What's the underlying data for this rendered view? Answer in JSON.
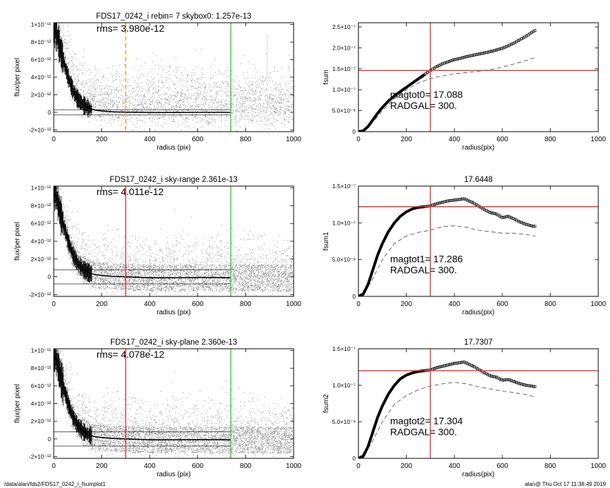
{
  "footer": {
    "path": "/data/alan/fds2/FDS17_0242_i_fsumplot1",
    "user_time": "alan@  Thu Oct 17 11:38:49 2019"
  },
  "colors": {
    "points": "#888888",
    "profile": "#000000",
    "radgal_line": "#e8332e",
    "outer_line": "#33cc33",
    "skybox_line": "#f0a030",
    "axes": "#000000"
  },
  "chart_data": [
    {
      "type": "scatter",
      "title": "FDS17_0242_i rebin= 7    skybox0:  1.257e-13",
      "annotation": "rms= 3.980e-12",
      "xlabel": "radius (pix)",
      "ylabel": "flux/per pixel",
      "xlim": [
        0,
        1000
      ],
      "ylim": [
        -2.2e-12,
        1.02e-11
      ],
      "x_ticks": [
        "0",
        "200",
        "400",
        "600",
        "800",
        "1000"
      ],
      "y_ticks": [
        {
          "value": -2e-12,
          "label": "-2×10⁻¹²"
        },
        {
          "value": 0,
          "label": "0"
        },
        {
          "value": 2e-12,
          "label": "2×10⁻¹²"
        },
        {
          "value": 4e-12,
          "label": "4×10⁻¹²"
        },
        {
          "value": 6e-12,
          "label": "6×10⁻¹²"
        },
        {
          "value": 8e-12,
          "label": "8×10⁻¹²"
        },
        {
          "value": 1e-11,
          "label": "1×10⁻¹¹"
        }
      ],
      "vlines": [
        {
          "x": 300,
          "color": "#f0a030",
          "style": "dashed"
        },
        {
          "x": 738,
          "color": "#33cc33",
          "style": "solid"
        }
      ],
      "profile": [
        [
          5,
          9.4e-12
        ],
        [
          15,
          8.6e-12
        ],
        [
          25,
          7.4e-12
        ],
        [
          40,
          5.9e-12
        ],
        [
          60,
          4e-12
        ],
        [
          80,
          2.5e-12
        ],
        [
          100,
          1.5e-12
        ],
        [
          125,
          8e-13
        ],
        [
          150,
          4e-13
        ],
        [
          175,
          2.5e-13
        ],
        [
          200,
          1.5e-13
        ],
        [
          250,
          5e-14
        ],
        [
          300,
          2e-14
        ],
        [
          400,
          0
        ],
        [
          500,
          -2e-14
        ],
        [
          600,
          0
        ],
        [
          738,
          0
        ]
      ],
      "sky_band": [
        -3e-13,
        3e-13
      ],
      "scatter_style": "sparse"
    },
    {
      "type": "line",
      "title": "",
      "xlabel": "radius(pix)",
      "ylabel": "fsum",
      "xlim": [
        0,
        1000
      ],
      "ylim": [
        0,
        2.6e-07
      ],
      "x_ticks": [
        "0",
        "200",
        "400",
        "600",
        "800",
        "1000"
      ],
      "y_ticks": [
        {
          "value": 0,
          "label": "0"
        },
        {
          "value": 5e-08,
          "label": "5.0×10⁻⁸"
        },
        {
          "value": 1e-07,
          "label": "1.0×10⁻⁷"
        },
        {
          "value": 1.5e-07,
          "label": "1.5×10⁻⁷"
        },
        {
          "value": 2e-07,
          "label": "2.0×10⁻⁷"
        },
        {
          "value": 2.5e-07,
          "label": "2.5×10⁻⁷"
        }
      ],
      "vline": 300,
      "hline": 1.46e-07,
      "magtot": "magtot0=  17.088",
      "radgal": "RADGAL=    300.",
      "curve": [
        [
          0,
          0
        ],
        [
          20,
          2e-09
        ],
        [
          40,
          1.2e-08
        ],
        [
          60,
          2.8e-08
        ],
        [
          80,
          4.4e-08
        ],
        [
          100,
          5.8e-08
        ],
        [
          125,
          7.3e-08
        ],
        [
          150,
          8.5e-08
        ],
        [
          175,
          9.6e-08
        ],
        [
          200,
          1.06e-07
        ],
        [
          225,
          1.16e-07
        ],
        [
          250,
          1.26e-07
        ],
        [
          275,
          1.36e-07
        ],
        [
          300,
          1.46e-07
        ],
        [
          325,
          1.55e-07
        ],
        [
          350,
          1.62e-07
        ],
        [
          375,
          1.67e-07
        ],
        [
          400,
          1.72e-07
        ],
        [
          425,
          1.75e-07
        ],
        [
          450,
          1.79e-07
        ],
        [
          475,
          1.82e-07
        ],
        [
          500,
          1.85e-07
        ],
        [
          525,
          1.88e-07
        ],
        [
          550,
          1.91e-07
        ],
        [
          575,
          1.95e-07
        ],
        [
          600,
          1.99e-07
        ],
        [
          625,
          2.05e-07
        ],
        [
          650,
          2.12e-07
        ],
        [
          675,
          2.2e-07
        ],
        [
          700,
          2.28e-07
        ],
        [
          720,
          2.36e-07
        ],
        [
          738,
          2.42e-07
        ]
      ],
      "dashed": [
        [
          0,
          0
        ],
        [
          50,
          1.6e-08
        ],
        [
          100,
          5e-08
        ],
        [
          150,
          7.9e-08
        ],
        [
          200,
          1e-07
        ],
        [
          250,
          1.16e-07
        ],
        [
          300,
          1.27e-07
        ],
        [
          350,
          1.33e-07
        ],
        [
          400,
          1.38e-07
        ],
        [
          450,
          1.41e-07
        ],
        [
          500,
          1.44e-07
        ],
        [
          550,
          1.48e-07
        ],
        [
          600,
          1.54e-07
        ],
        [
          650,
          1.62e-07
        ],
        [
          700,
          1.7e-07
        ],
        [
          738,
          1.77e-07
        ]
      ]
    },
    {
      "type": "scatter",
      "title": "FDS17_0242_i sky-range  2.361e-13",
      "annotation": "rms= 4.011e-12",
      "xlabel": "radius (pix)",
      "ylabel": "flux/per pixel",
      "xlim": [
        0,
        1000
      ],
      "ylim": [
        -2.2e-12,
        1.02e-11
      ],
      "x_ticks": [
        "0",
        "200",
        "400",
        "600",
        "800",
        "1000"
      ],
      "y_ticks": [
        {
          "value": -2e-12,
          "label": "-2×10⁻¹²"
        },
        {
          "value": 0,
          "label": "0"
        },
        {
          "value": 2e-12,
          "label": "2×10⁻¹²"
        },
        {
          "value": 4e-12,
          "label": "4×10⁻¹²"
        },
        {
          "value": 6e-12,
          "label": "6×10⁻¹²"
        },
        {
          "value": 8e-12,
          "label": "8×10⁻¹²"
        },
        {
          "value": 1e-11,
          "label": "1×10⁻¹¹"
        }
      ],
      "vlines": [
        {
          "x": 300,
          "color": "#e8332e",
          "style": "solid"
        },
        {
          "x": 738,
          "color": "#33cc33",
          "style": "solid"
        }
      ],
      "profile": [
        [
          5,
          9.4e-12
        ],
        [
          15,
          8.6e-12
        ],
        [
          25,
          7.4e-12
        ],
        [
          40,
          5.9e-12
        ],
        [
          60,
          4e-12
        ],
        [
          80,
          2.5e-12
        ],
        [
          100,
          1.5e-12
        ],
        [
          125,
          8e-13
        ],
        [
          150,
          4e-13
        ],
        [
          175,
          2.5e-13
        ],
        [
          200,
          1.5e-13
        ],
        [
          250,
          5e-14
        ],
        [
          300,
          0
        ],
        [
          400,
          -1e-13
        ],
        [
          500,
          -1e-13
        ],
        [
          600,
          -8e-14
        ],
        [
          738,
          -1e-13
        ]
      ],
      "sky_band": [
        -8e-13,
        8e-13
      ],
      "scatter_style": "dense"
    },
    {
      "type": "line",
      "title": "17.6448",
      "xlabel": "radius(pix)",
      "ylabel": "fsum1",
      "xlim": [
        0,
        1000
      ],
      "ylim": [
        0,
        1.5e-07
      ],
      "x_ticks": [
        "0",
        "200",
        "400",
        "600",
        "800",
        "1000"
      ],
      "y_ticks": [
        {
          "value": 0,
          "label": "0"
        },
        {
          "value": 5e-08,
          "label": "5.0×10⁻⁸"
        },
        {
          "value": 1e-07,
          "label": "1.0×10⁻⁷"
        },
        {
          "value": 1.5e-07,
          "label": "1.5×10⁻⁷"
        }
      ],
      "vline": 300,
      "hline": 1.22e-07,
      "magtot": "magtot1=  17.286",
      "radgal": "RADGAL=    300.",
      "curve": [
        [
          0,
          0
        ],
        [
          20,
          3e-09
        ],
        [
          40,
          1.6e-08
        ],
        [
          60,
          3.6e-08
        ],
        [
          80,
          5.6e-08
        ],
        [
          100,
          7.2e-08
        ],
        [
          125,
          8.8e-08
        ],
        [
          150,
          1e-07
        ],
        [
          175,
          1.09e-07
        ],
        [
          200,
          1.15e-07
        ],
        [
          225,
          1.19e-07
        ],
        [
          250,
          1.21e-07
        ],
        [
          275,
          1.22e-07
        ],
        [
          300,
          1.23e-07
        ],
        [
          325,
          1.26e-07
        ],
        [
          350,
          1.28e-07
        ],
        [
          375,
          1.3e-07
        ],
        [
          400,
          1.31e-07
        ],
        [
          425,
          1.32e-07
        ],
        [
          440,
          1.33e-07
        ],
        [
          460,
          1.3e-07
        ],
        [
          480,
          1.27e-07
        ],
        [
          500,
          1.23e-07
        ],
        [
          525,
          1.18e-07
        ],
        [
          550,
          1.14e-07
        ],
        [
          575,
          1.12e-07
        ],
        [
          600,
          1.07e-07
        ],
        [
          625,
          1.09e-07
        ],
        [
          650,
          1.05e-07
        ],
        [
          675,
          1.01e-07
        ],
        [
          700,
          9.8e-08
        ],
        [
          720,
          9.6e-08
        ],
        [
          738,
          9.5e-08
        ]
      ],
      "dashed": [
        [
          0,
          0
        ],
        [
          50,
          1.8e-08
        ],
        [
          100,
          5e-08
        ],
        [
          150,
          7.2e-08
        ],
        [
          200,
          8.2e-08
        ],
        [
          250,
          8.7e-08
        ],
        [
          300,
          9e-08
        ],
        [
          350,
          9.5e-08
        ],
        [
          400,
          9.6e-08
        ],
        [
          450,
          9.4e-08
        ],
        [
          500,
          9e-08
        ],
        [
          550,
          8.8e-08
        ],
        [
          600,
          8.6e-08
        ],
        [
          650,
          8.6e-08
        ],
        [
          700,
          8.4e-08
        ],
        [
          738,
          8.2e-08
        ]
      ]
    },
    {
      "type": "scatter",
      "title": "FDS17_0242_i sky-plane  2.360e-13",
      "annotation": "rms= 4.078e-12",
      "xlabel": "radius (pix)",
      "ylabel": "flux/per pixel",
      "xlim": [
        0,
        1000
      ],
      "ylim": [
        -2.2e-12,
        1.02e-11
      ],
      "x_ticks": [
        "0",
        "200",
        "400",
        "600",
        "800",
        "1000"
      ],
      "y_ticks": [
        {
          "value": -2e-12,
          "label": "-2×10⁻¹²"
        },
        {
          "value": 0,
          "label": "0"
        },
        {
          "value": 2e-12,
          "label": "2×10⁻¹²"
        },
        {
          "value": 4e-12,
          "label": "4×10⁻¹²"
        },
        {
          "value": 6e-12,
          "label": "6×10⁻¹²"
        },
        {
          "value": 8e-12,
          "label": "8×10⁻¹²"
        },
        {
          "value": 1e-11,
          "label": "1×10⁻¹¹"
        }
      ],
      "vlines": [
        {
          "x": 300,
          "color": "#e8332e",
          "style": "solid"
        },
        {
          "x": 738,
          "color": "#33cc33",
          "style": "solid"
        }
      ],
      "profile": [
        [
          5,
          9.4e-12
        ],
        [
          15,
          8.6e-12
        ],
        [
          25,
          7.4e-12
        ],
        [
          40,
          5.9e-12
        ],
        [
          60,
          4e-12
        ],
        [
          80,
          2.5e-12
        ],
        [
          100,
          1.5e-12
        ],
        [
          125,
          8e-13
        ],
        [
          150,
          4e-13
        ],
        [
          175,
          2.5e-13
        ],
        [
          200,
          1.5e-13
        ],
        [
          250,
          5e-14
        ],
        [
          300,
          0
        ],
        [
          400,
          -1e-13
        ],
        [
          500,
          -1e-13
        ],
        [
          600,
          -8e-14
        ],
        [
          738,
          -1e-13
        ]
      ],
      "sky_band": [
        -8e-13,
        8e-13
      ],
      "scatter_style": "dense"
    },
    {
      "type": "line",
      "title": "17.7307",
      "xlabel": "radius(pix)",
      "ylabel": "fsum2",
      "xlim": [
        0,
        1000
      ],
      "ylim": [
        0,
        1.5e-07
      ],
      "x_ticks": [
        "0",
        "200",
        "400",
        "600",
        "800",
        "1000"
      ],
      "y_ticks": [
        {
          "value": 0,
          "label": "0"
        },
        {
          "value": 5e-08,
          "label": "5.0×10⁻⁸"
        },
        {
          "value": 1e-07,
          "label": "1.0×10⁻⁷"
        },
        {
          "value": 1.5e-07,
          "label": "1.5×10⁻⁷"
        }
      ],
      "vline": 300,
      "hline": 1.2e-07,
      "magtot": "magtot2=  17.304",
      "radgal": "RADGAL=    300.",
      "curve": [
        [
          0,
          0
        ],
        [
          20,
          3e-09
        ],
        [
          40,
          1.6e-08
        ],
        [
          60,
          3.6e-08
        ],
        [
          80,
          5.6e-08
        ],
        [
          100,
          7.2e-08
        ],
        [
          125,
          8.8e-08
        ],
        [
          150,
          1e-07
        ],
        [
          175,
          1.09e-07
        ],
        [
          200,
          1.14e-07
        ],
        [
          225,
          1.17e-07
        ],
        [
          250,
          1.19e-07
        ],
        [
          275,
          1.2e-07
        ],
        [
          300,
          1.21e-07
        ],
        [
          325,
          1.24e-07
        ],
        [
          350,
          1.26e-07
        ],
        [
          375,
          1.28e-07
        ],
        [
          400,
          1.3e-07
        ],
        [
          425,
          1.31e-07
        ],
        [
          440,
          1.32e-07
        ],
        [
          460,
          1.29e-07
        ],
        [
          480,
          1.26e-07
        ],
        [
          500,
          1.22e-07
        ],
        [
          525,
          1.17e-07
        ],
        [
          550,
          1.13e-07
        ],
        [
          575,
          1.11e-07
        ],
        [
          600,
          1.07e-07
        ],
        [
          625,
          1.08e-07
        ],
        [
          650,
          1.05e-07
        ],
        [
          675,
          1.02e-07
        ],
        [
          700,
          1e-07
        ],
        [
          720,
          9.9e-08
        ],
        [
          738,
          9.8e-08
        ]
      ],
      "dashed": [
        [
          0,
          0
        ],
        [
          50,
          1.8e-08
        ],
        [
          100,
          5e-08
        ],
        [
          150,
          7.4e-08
        ],
        [
          200,
          8.6e-08
        ],
        [
          250,
          9.4e-08
        ],
        [
          300,
          9.9e-08
        ],
        [
          350,
          1.02e-07
        ],
        [
          400,
          1.04e-07
        ],
        [
          450,
          1.02e-07
        ],
        [
          500,
          9.8e-08
        ],
        [
          550,
          9.5e-08
        ],
        [
          600,
          9.2e-08
        ],
        [
          650,
          9e-08
        ],
        [
          700,
          8.7e-08
        ],
        [
          738,
          8.4e-08
        ]
      ]
    }
  ]
}
